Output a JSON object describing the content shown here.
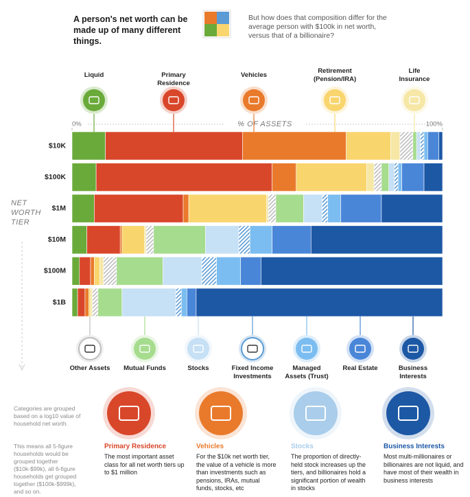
{
  "header": {
    "left": "A person's net worth can be made up of many different things.",
    "right": "But how does that composition differ for the average person with $100k in net worth, versus that of a billionaire?"
  },
  "chart_data": {
    "type": "bar",
    "orientation": "horizontal",
    "stacked": true,
    "xlabel": "% OF ASSETS",
    "ylabel": "NET WORTH TIER",
    "xlim": [
      0,
      100
    ],
    "xticks": [
      {
        "value": 0,
        "label": "0%"
      },
      {
        "value": 100,
        "label": "100%"
      }
    ],
    "categories": [
      "$10K",
      "$100K",
      "$1M",
      "$10M",
      "$100M",
      "$1B"
    ],
    "series": [
      {
        "name": "Liquid",
        "color": "#6aaa3a",
        "hatched": false,
        "legend": "top",
        "values": [
          9,
          6.5,
          6,
          4,
          2,
          1.5
        ]
      },
      {
        "name": "Primary Residence",
        "color": "#d9472b",
        "hatched": false,
        "legend": "top",
        "values": [
          37,
          47.5,
          24,
          9,
          3,
          2
        ]
      },
      {
        "name": "Vehicles",
        "color": "#e97a2c",
        "hatched": false,
        "legend": "top",
        "values": [
          28,
          6.5,
          1.5,
          0.5,
          1,
          1
        ]
      },
      {
        "name": "Retirement (Pension/IRA)",
        "color": "#f9d56e",
        "hatched": false,
        "legend": "top",
        "values": [
          12,
          19,
          21,
          6,
          1.5,
          0.5
        ]
      },
      {
        "name": "Life Insurance",
        "color": "#f6e7a6",
        "hatched": false,
        "legend": "top",
        "values": [
          2.5,
          2,
          0.5,
          0.5,
          1,
          0.5
        ]
      },
      {
        "name": "Other Assets",
        "color": "#bdbdbd",
        "hatched": true,
        "legend": "bottom",
        "values": [
          3.5,
          2,
          2,
          2,
          3.5,
          1.5
        ]
      },
      {
        "name": "Mutual Funds",
        "color": "#a6dc8e",
        "hatched": false,
        "legend": "bottom",
        "values": [
          1,
          2,
          7.5,
          14,
          12.5,
          6.5
        ]
      },
      {
        "name": "Stocks",
        "color": "#c6e0f5",
        "hatched": false,
        "legend": "bottom",
        "values": [
          1,
          1.5,
          5,
          9,
          10.5,
          14.5
        ]
      },
      {
        "name": "Fixed Income Investments",
        "color": "#5b9bd5",
        "hatched": true,
        "legend": "bottom",
        "values": [
          1,
          1,
          1.5,
          3,
          4,
          1.5
        ]
      },
      {
        "name": "Managed Assets (Trust)",
        "color": "#7bbdf0",
        "hatched": false,
        "legend": "bottom",
        "values": [
          1,
          1,
          3.5,
          6,
          6.5,
          1.5
        ]
      },
      {
        "name": "Real Estate",
        "color": "#4a86d8",
        "hatched": false,
        "legend": "bottom",
        "values": [
          3,
          6,
          11,
          10.5,
          5.5,
          2.5
        ]
      },
      {
        "name": "Business Interests",
        "color": "#1d58a5",
        "hatched": false,
        "legend": "bottom",
        "values": [
          1,
          5,
          16.5,
          35.5,
          49,
          66.5
        ]
      }
    ]
  },
  "notes": [
    "Categories are grouped based on a log10 value of household net worth.",
    "This means all 5-figure households would be grouped together ($10k-$99k), all 6-figure households get grouped together ($100k-$999k), and so on."
  ],
  "callouts": [
    {
      "title": "Primary Residence",
      "color": "#d9472b",
      "text": "The most important asset class for all net worth tiers up to $1 million"
    },
    {
      "title": "Vehicles",
      "color": "#e97a2c",
      "text": "For the $10k net worth tier, the value of a vehicle is more than investments such as pensions, IRAs, mutual funds, stocks, etc"
    },
    {
      "title": "Stocks",
      "color": "#a9cdea",
      "text": "The proportion of directly-held stock increases up the tiers, and billionaires hold a significant portion of wealth in stocks"
    },
    {
      "title": "Business Interests",
      "color": "#1d58a5",
      "text": "Most multi-millionaires or billionaires are not liquid, and have most of their wealth in business interests"
    }
  ]
}
